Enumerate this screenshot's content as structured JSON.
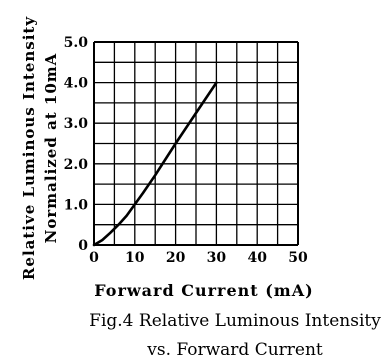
{
  "chart_data": {
    "type": "line",
    "title": "",
    "xlabel": "Forward Current (mA)",
    "ylabel_line1": "Relative Luminous Intensity",
    "ylabel_line2": "Normalized at 10mA",
    "xlim": [
      0,
      50
    ],
    "ylim": [
      0,
      5
    ],
    "xticks": [
      "0",
      "10",
      "20",
      "30",
      "40",
      "50"
    ],
    "yticks": [
      "0",
      "1.0",
      "2.0",
      "3.0",
      "4.0",
      "5.0"
    ],
    "grid": true,
    "series": [
      {
        "x": [
          0,
          2,
          4,
          6,
          8,
          10,
          12,
          15,
          20,
          25,
          30
        ],
        "y": [
          0,
          0.12,
          0.3,
          0.5,
          0.72,
          1.0,
          1.28,
          1.72,
          2.5,
          3.25,
          4.0
        ]
      }
    ]
  },
  "caption": {
    "line1": "Fig.4 Relative Luminous Intensity",
    "line2": "vs. Forward Current"
  }
}
